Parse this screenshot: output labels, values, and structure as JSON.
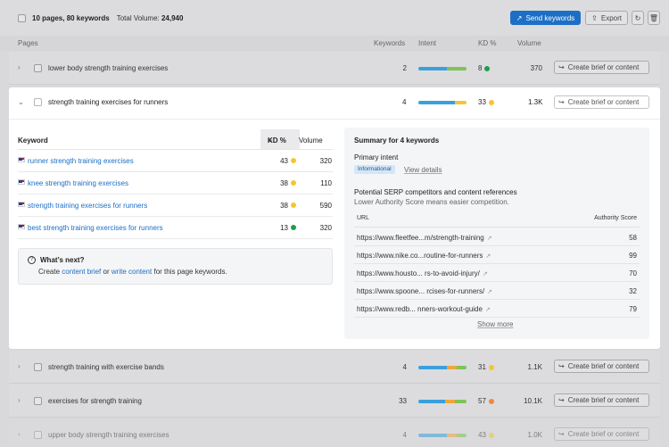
{
  "toolbar": {
    "pages_count": "10 pages, 80 keywords",
    "total_volume_label": "Total Volume:",
    "total_volume_value": "24,940",
    "send_keywords": "Send keywords",
    "export": "Export"
  },
  "columns": {
    "pages": "Pages",
    "keywords": "Keywords",
    "intent": "Intent",
    "kd": "KD %",
    "volume": "Volume"
  },
  "colors": {
    "intent_blue": "#3aa0dc",
    "intent_green": "#7fc35a",
    "intent_orange": "#f0a63a",
    "intent_yellow": "#f3c63a",
    "kd_yellow": "#f5c531",
    "kd_green": "#1f9e4e",
    "kd_orange": "#f0883e",
    "accent": "#1d6fc6"
  },
  "rows": [
    {
      "title": "lower body strength training exercises",
      "keywords": "2",
      "kd": "8",
      "kd_color": "#1f9e4e",
      "volume": "370",
      "action": "Create brief or content"
    },
    {
      "title": "strength training with exercise bands",
      "keywords": "4",
      "kd": "31",
      "kd_color": "#f5c531",
      "volume": "1.1K",
      "action": "Create brief or content"
    },
    {
      "title": "exercises for strength training",
      "keywords": "33",
      "kd": "57",
      "kd_color": "#f0883e",
      "volume": "10.1K",
      "action": "Create brief or content"
    },
    {
      "title": "upper body strength training exercises",
      "keywords": "4",
      "kd": "43",
      "kd_color": "#f5c531",
      "volume": "1.0K",
      "action": "Create brief or content"
    }
  ],
  "expanded": {
    "title": "strength training exercises for runners",
    "keywords": "4",
    "kd": "33",
    "volume": "1.3K",
    "action": "Create brief or content",
    "table": {
      "col_keyword": "Keyword",
      "col_kd": "KD %",
      "col_volume": "Volume",
      "rows": [
        {
          "keyword": "runner strength training exercises",
          "kd": "43",
          "kd_color": "#f5c531",
          "volume": "320"
        },
        {
          "keyword": "knee strength training exercises",
          "kd": "38",
          "kd_color": "#f5c531",
          "volume": "110"
        },
        {
          "keyword": "strength training exercises for runners",
          "kd": "38",
          "kd_color": "#f5c531",
          "volume": "590"
        },
        {
          "keyword": "best strength training exercises for runners",
          "kd": "13",
          "kd_color": "#1f9e4e",
          "volume": "320"
        }
      ]
    },
    "whats_next": {
      "heading": "What’s next?",
      "text_create": "Create",
      "link_brief": "content brief",
      "text_or": "or",
      "link_write": "write content",
      "text_tail": "for this page keywords."
    },
    "summary": {
      "title": "Summary for 4 keywords",
      "primary_intent_label": "Primary intent",
      "intent_badge": "Informational",
      "view_details": "View details",
      "serp_title": "Potential SERP competitors and content references",
      "serp_sub": "Lower Authority Score means easier competition.",
      "col_url": "URL",
      "col_as": "Authority Score",
      "urls": [
        {
          "url": "https://www.fleetfee...m/strength-training",
          "score": "58"
        },
        {
          "url": "https://www.nike.co...routine-for-runners",
          "score": "99"
        },
        {
          "url": "https://www.housto... rs-to-avoid-injury/",
          "score": "70"
        },
        {
          "url": "https://www.spoone... rcises-for-runners/",
          "score": "32"
        },
        {
          "url": "https://www.redb... nners-workout-guide",
          "score": "79"
        }
      ],
      "show_more": "Show more"
    }
  }
}
